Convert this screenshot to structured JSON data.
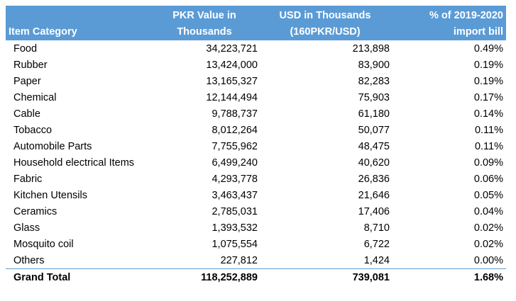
{
  "table": {
    "headers": {
      "item_category": "Item Category",
      "pkr_line1": "PKR Value in",
      "pkr_line2": "Thousands",
      "usd_line1": "USD in Thousands",
      "usd_line2": "(160PKR/USD)",
      "pct_line1": "% of 2019-2020",
      "pct_line2": "import bill"
    },
    "rows": [
      {
        "category": "Food",
        "pkr": "34,223,721",
        "usd": "213,898",
        "pct": "0.49%"
      },
      {
        "category": "Rubber",
        "pkr": "13,424,000",
        "usd": "83,900",
        "pct": "0.19%"
      },
      {
        "category": "Paper",
        "pkr": "13,165,327",
        "usd": "82,283",
        "pct": "0.19%"
      },
      {
        "category": "Chemical",
        "pkr": "12,144,494",
        "usd": "75,903",
        "pct": "0.17%"
      },
      {
        "category": "Cable",
        "pkr": "9,788,737",
        "usd": "61,180",
        "pct": "0.14%"
      },
      {
        "category": "Tobacco",
        "pkr": "8,012,264",
        "usd": "50,077",
        "pct": "0.11%"
      },
      {
        "category": "Automobile Parts",
        "pkr": "7,755,962",
        "usd": "48,475",
        "pct": "0.11%"
      },
      {
        "category": "Household electrical Items",
        "pkr": "6,499,240",
        "usd": "40,620",
        "pct": "0.09%"
      },
      {
        "category": "Fabric",
        "pkr": "4,293,778",
        "usd": "26,836",
        "pct": "0.06%"
      },
      {
        "category": "Kitchen Utensils",
        "pkr": "3,463,437",
        "usd": "21,646",
        "pct": "0.05%"
      },
      {
        "category": "Ceramics",
        "pkr": "2,785,031",
        "usd": "17,406",
        "pct": "0.04%"
      },
      {
        "category": "Glass",
        "pkr": "1,393,532",
        "usd": "8,710",
        "pct": "0.02%"
      },
      {
        "category": "Mosquito coil",
        "pkr": "1,075,554",
        "usd": "6,722",
        "pct": "0.02%"
      },
      {
        "category": "Others",
        "pkr": "227,812",
        "usd": "1,424",
        "pct": "0.00%"
      }
    ],
    "total": {
      "category": "Grand Total",
      "pkr": "118,252,889",
      "usd": "739,081",
      "pct": "1.68%"
    },
    "colors": {
      "header_background": "#5b9bd5",
      "header_text": "#ffffff",
      "total_border": "#5b9bd5"
    }
  }
}
